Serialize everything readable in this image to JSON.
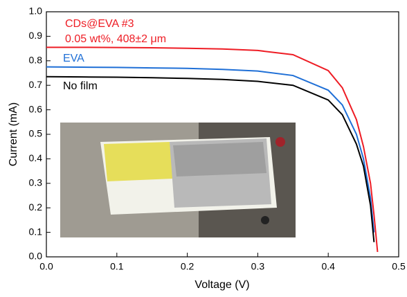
{
  "chart_data": {
    "type": "line",
    "x_label": "Voltage (V)",
    "y_label": "Current (mA)",
    "x": [
      0,
      0.05,
      0.1,
      0.15,
      0.2,
      0.25,
      0.3,
      0.35,
      0.4,
      0.42,
      0.44,
      0.45,
      0.46,
      0.465,
      0.47
    ],
    "series": [
      {
        "name": "CDs@EVA #3",
        "color": "#ee1c24",
        "values": [
          0.855,
          0.855,
          0.854,
          0.853,
          0.851,
          0.848,
          0.842,
          0.825,
          0.76,
          0.69,
          0.56,
          0.45,
          0.3,
          0.17,
          0.02
        ]
      },
      {
        "name": "EVA",
        "color": "#1f6fd6",
        "values": [
          0.775,
          0.774,
          0.773,
          0.771,
          0.769,
          0.765,
          0.758,
          0.74,
          0.68,
          0.62,
          0.5,
          0.4,
          0.24,
          0.1,
          null
        ]
      },
      {
        "name": "No film",
        "color": "#000000",
        "values": [
          0.735,
          0.734,
          0.733,
          0.731,
          0.728,
          0.724,
          0.716,
          0.7,
          0.64,
          0.58,
          0.46,
          0.37,
          0.21,
          0.06,
          null
        ]
      }
    ],
    "annotation": "0.05 wt%, 408±2 μm",
    "xlim": [
      0,
      0.5
    ],
    "ylim": [
      0,
      1
    ],
    "xticks": [
      {
        "value": 0,
        "label": "0.0"
      },
      0.1,
      0.2,
      0.3,
      0.4,
      0.5
    ],
    "yticks": [
      {
        "value": 0,
        "label": "0.0"
      },
      0.1,
      0.2,
      0.3,
      0.4,
      0.5,
      0.6,
      0.7,
      0.8,
      0.9,
      {
        "value": 1,
        "label": "1.0"
      }
    ]
  }
}
